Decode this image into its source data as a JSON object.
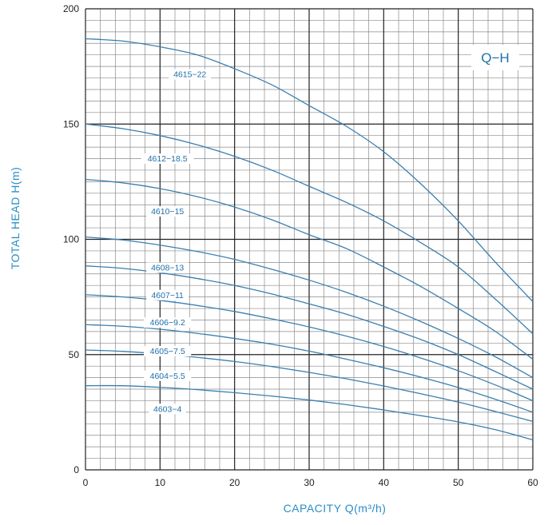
{
  "chart_data": {
    "type": "line",
    "xlabel": "CAPACITY Q(m³/h)",
    "ylabel": "TOTAL HEAD H(m)",
    "xlim": [
      0,
      60
    ],
    "ylim": [
      0,
      200
    ],
    "xticks": [
      0,
      10,
      20,
      30,
      40,
      50,
      60
    ],
    "yticks": [
      0,
      50,
      100,
      150,
      200
    ],
    "grid": true,
    "legend_box": "Q−H",
    "x": [
      0,
      5,
      10,
      15,
      20,
      25,
      30,
      35,
      40,
      45,
      50,
      55,
      60
    ],
    "series": [
      {
        "name": "4615−22",
        "values": [
          187,
          186,
          183.5,
          180,
          174,
          167,
          158,
          149,
          138,
          124,
          108,
          90,
          73
        ]
      },
      {
        "name": "4612−18.5",
        "values": [
          150,
          148,
          145,
          141,
          136,
          130,
          123,
          116,
          108,
          98.5,
          88,
          74,
          59
        ]
      },
      {
        "name": "4610−15",
        "values": [
          126,
          124.5,
          122,
          118.5,
          114,
          108.5,
          102,
          96,
          88,
          79.5,
          70,
          60,
          48
        ]
      },
      {
        "name": "4608−13",
        "values": [
          101,
          99.7,
          97.5,
          94.7,
          91.3,
          87,
          82.3,
          77,
          71,
          64.3,
          57,
          49,
          40
        ]
      },
      {
        "name": "4607−11",
        "values": [
          88.5,
          87.4,
          85.5,
          83,
          80,
          76.3,
          72,
          67.5,
          62.2,
          56.5,
          50,
          42.6,
          35
        ]
      },
      {
        "name": "4606−9.2",
        "values": [
          76,
          75,
          73.5,
          71.3,
          68.7,
          65.5,
          62,
          58,
          53.5,
          48.5,
          43,
          36.8,
          30
        ]
      },
      {
        "name": "4605−7.5",
        "values": [
          63,
          62.3,
          61,
          59.2,
          57,
          54.5,
          51.5,
          48,
          44.3,
          40.2,
          35.7,
          30.6,
          25
        ]
      },
      {
        "name": "4604−5.5",
        "values": [
          52,
          51.4,
          50.3,
          48.8,
          47,
          44.8,
          42.3,
          39.5,
          36.4,
          33,
          29.4,
          25.3,
          21
        ]
      },
      {
        "name": "4603−4",
        "values": [
          36.5,
          36.5,
          35.8,
          34.8,
          33.5,
          32,
          30.3,
          28.3,
          26,
          23.5,
          20.8,
          17.4,
          13
        ]
      }
    ],
    "colors": {
      "curve": "#3a7fb0",
      "label_text": "#1f6fa8",
      "axis_title": "#2a8fc6",
      "minor_grid": "#8a8a8a",
      "major_grid": "#222222"
    }
  }
}
